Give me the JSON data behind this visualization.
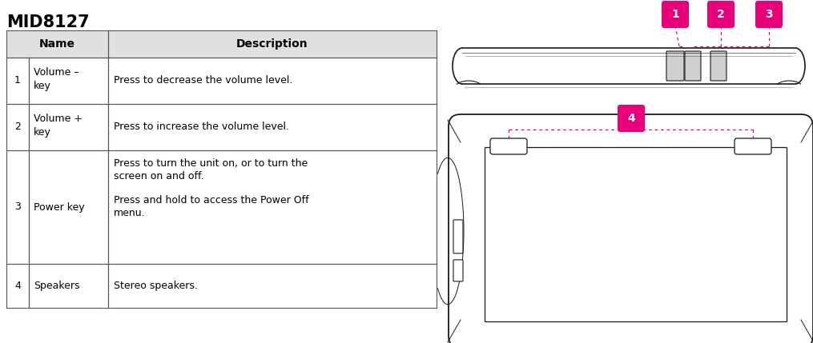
{
  "title": "MID8127",
  "title_fontsize": 15,
  "title_fontweight": "bold",
  "bg_color": "#ffffff",
  "table_header_bg": "#e0e0e0",
  "table_border_color": "#555555",
  "rows": [
    {
      "num": "1",
      "name": "Volume –\nkey",
      "desc": "Press to decrease the volume level."
    },
    {
      "num": "2",
      "name": "Volume +\nkey",
      "desc": "Press to increase the volume level."
    },
    {
      "num": "3",
      "name": "Power key",
      "desc": "Press to turn the unit on, or to turn the\nscreen on and off.\n\nPress and hold to access the Power Off\nmenu."
    },
    {
      "num": "4",
      "name": "Speakers",
      "desc": "Stereo speakers."
    }
  ],
  "callout_color": "#e8007a",
  "device_line_color": "#1a1a1a"
}
